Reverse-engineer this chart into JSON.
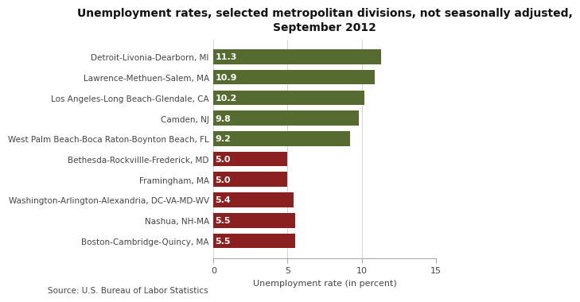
{
  "title": "Unemployment rates, selected metropolitan divisions, not seasonally adjusted,\nSeptember 2012",
  "categories": [
    "Boston-Cambridge-Quincy, MA",
    "Nashua, NH-MA",
    "Washington-Arlington-Alexandria, DC-VA-MD-WV",
    "Framingham, MA",
    "Bethesda-Rockvillle-Frederick, MD",
    "West Palm Beach-Boca Raton-Boynton Beach, FL",
    "Camden, NJ",
    "Los Angeles-Long Beach-Glendale, CA",
    "Lawrence-Methuen-Salem, MA",
    "Detroit-Livonia-Dearborn, MI"
  ],
  "values": [
    5.5,
    5.5,
    5.4,
    5.0,
    5.0,
    9.2,
    9.8,
    10.2,
    10.9,
    11.3
  ],
  "colors": [
    "#8B2020",
    "#8B2020",
    "#8B2020",
    "#8B2020",
    "#8B2020",
    "#556B2F",
    "#556B2F",
    "#556B2F",
    "#556B2F",
    "#556B2F"
  ],
  "xlabel": "Unemployment rate (in percent)",
  "source": "Source: U.S. Bureau of Labor Statistics",
  "xlim": [
    0,
    15
  ],
  "xticks": [
    0,
    5,
    10,
    15
  ],
  "background_color": "#ffffff",
  "title_fontsize": 10,
  "label_fontsize": 7.5,
  "value_fontsize": 8,
  "axis_fontsize": 8,
  "source_fontsize": 7.5,
  "bar_height": 0.72
}
